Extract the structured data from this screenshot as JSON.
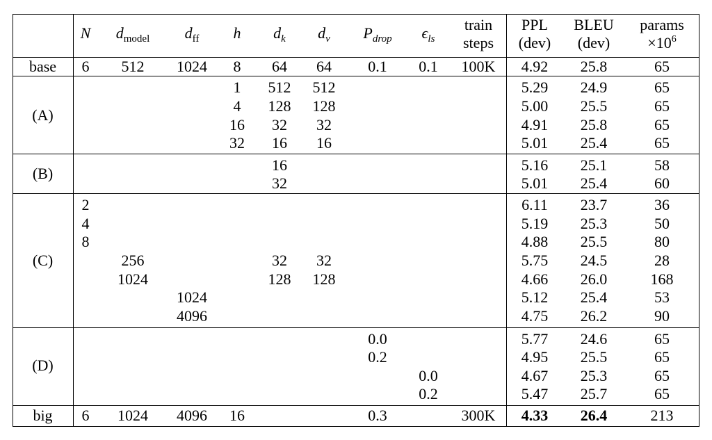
{
  "headers": {
    "n": "N",
    "d_model_base": "d",
    "d_model_sub": "model",
    "d_ff_base": "d",
    "d_ff_sub": "ff",
    "h": "h",
    "d_k_base": "d",
    "d_k_sub": "k",
    "d_v_base": "d",
    "d_v_sub": "v",
    "p_drop_base": "P",
    "p_drop_sub": "drop",
    "eps_base": "ϵ",
    "eps_sub": "ls",
    "train_line1": "train",
    "train_line2": "steps",
    "ppl_line1": "PPL",
    "ppl_line2": "(dev)",
    "bleu_line1": "BLEU",
    "bleu_line2": "(dev)",
    "params_line1": "params",
    "params_line2_base": "×10",
    "params_line2_exp": "6"
  },
  "groups": {
    "base": "base",
    "A": "(A)",
    "B": "(B)",
    "C": "(C)",
    "D": "(D)",
    "big": "big"
  },
  "rows": {
    "base": {
      "N": "6",
      "dmodel": "512",
      "dff": "1024",
      "h": "8",
      "dk": "64",
      "dv": "64",
      "pdrop": "0.1",
      "eps": "0.1",
      "steps": "100K",
      "ppl": "4.92",
      "bleu": "25.8",
      "params": "65"
    },
    "A1": {
      "h": "1",
      "dk": "512",
      "dv": "512",
      "ppl": "5.29",
      "bleu": "24.9",
      "params": "65"
    },
    "A2": {
      "h": "4",
      "dk": "128",
      "dv": "128",
      "ppl": "5.00",
      "bleu": "25.5",
      "params": "65"
    },
    "A3": {
      "h": "16",
      "dk": "32",
      "dv": "32",
      "ppl": "4.91",
      "bleu": "25.8",
      "params": "65"
    },
    "A4": {
      "h": "32",
      "dk": "16",
      "dv": "16",
      "ppl": "5.01",
      "bleu": "25.4",
      "params": "65"
    },
    "B1": {
      "dk": "16",
      "ppl": "5.16",
      "bleu": "25.1",
      "params": "58"
    },
    "B2": {
      "dk": "32",
      "ppl": "5.01",
      "bleu": "25.4",
      "params": "60"
    },
    "C1": {
      "N": "2",
      "ppl": "6.11",
      "bleu": "23.7",
      "params": "36"
    },
    "C2": {
      "N": "4",
      "ppl": "5.19",
      "bleu": "25.3",
      "params": "50"
    },
    "C3": {
      "N": "8",
      "ppl": "4.88",
      "bleu": "25.5",
      "params": "80"
    },
    "C4": {
      "dmodel": "256",
      "dk": "32",
      "dv": "32",
      "ppl": "5.75",
      "bleu": "24.5",
      "params": "28"
    },
    "C5": {
      "dmodel": "1024",
      "dk": "128",
      "dv": "128",
      "ppl": "4.66",
      "bleu": "26.0",
      "params": "168"
    },
    "C6": {
      "dff": "1024",
      "ppl": "5.12",
      "bleu": "25.4",
      "params": "53"
    },
    "C7": {
      "dff": "4096",
      "ppl": "4.75",
      "bleu": "26.2",
      "params": "90"
    },
    "D1": {
      "pdrop": "0.0",
      "ppl": "5.77",
      "bleu": "24.6",
      "params": "65"
    },
    "D2": {
      "pdrop": "0.2",
      "ppl": "4.95",
      "bleu": "25.5",
      "params": "65"
    },
    "D3": {
      "eps": "0.0",
      "ppl": "4.67",
      "bleu": "25.3",
      "params": "65"
    },
    "D4": {
      "eps": "0.2",
      "ppl": "5.47",
      "bleu": "25.7",
      "params": "65"
    },
    "big": {
      "N": "6",
      "dmodel": "1024",
      "dff": "4096",
      "h": "16",
      "pdrop": "0.3",
      "steps": "300K",
      "ppl": "4.33",
      "bleu": "26.4",
      "params": "213"
    }
  }
}
